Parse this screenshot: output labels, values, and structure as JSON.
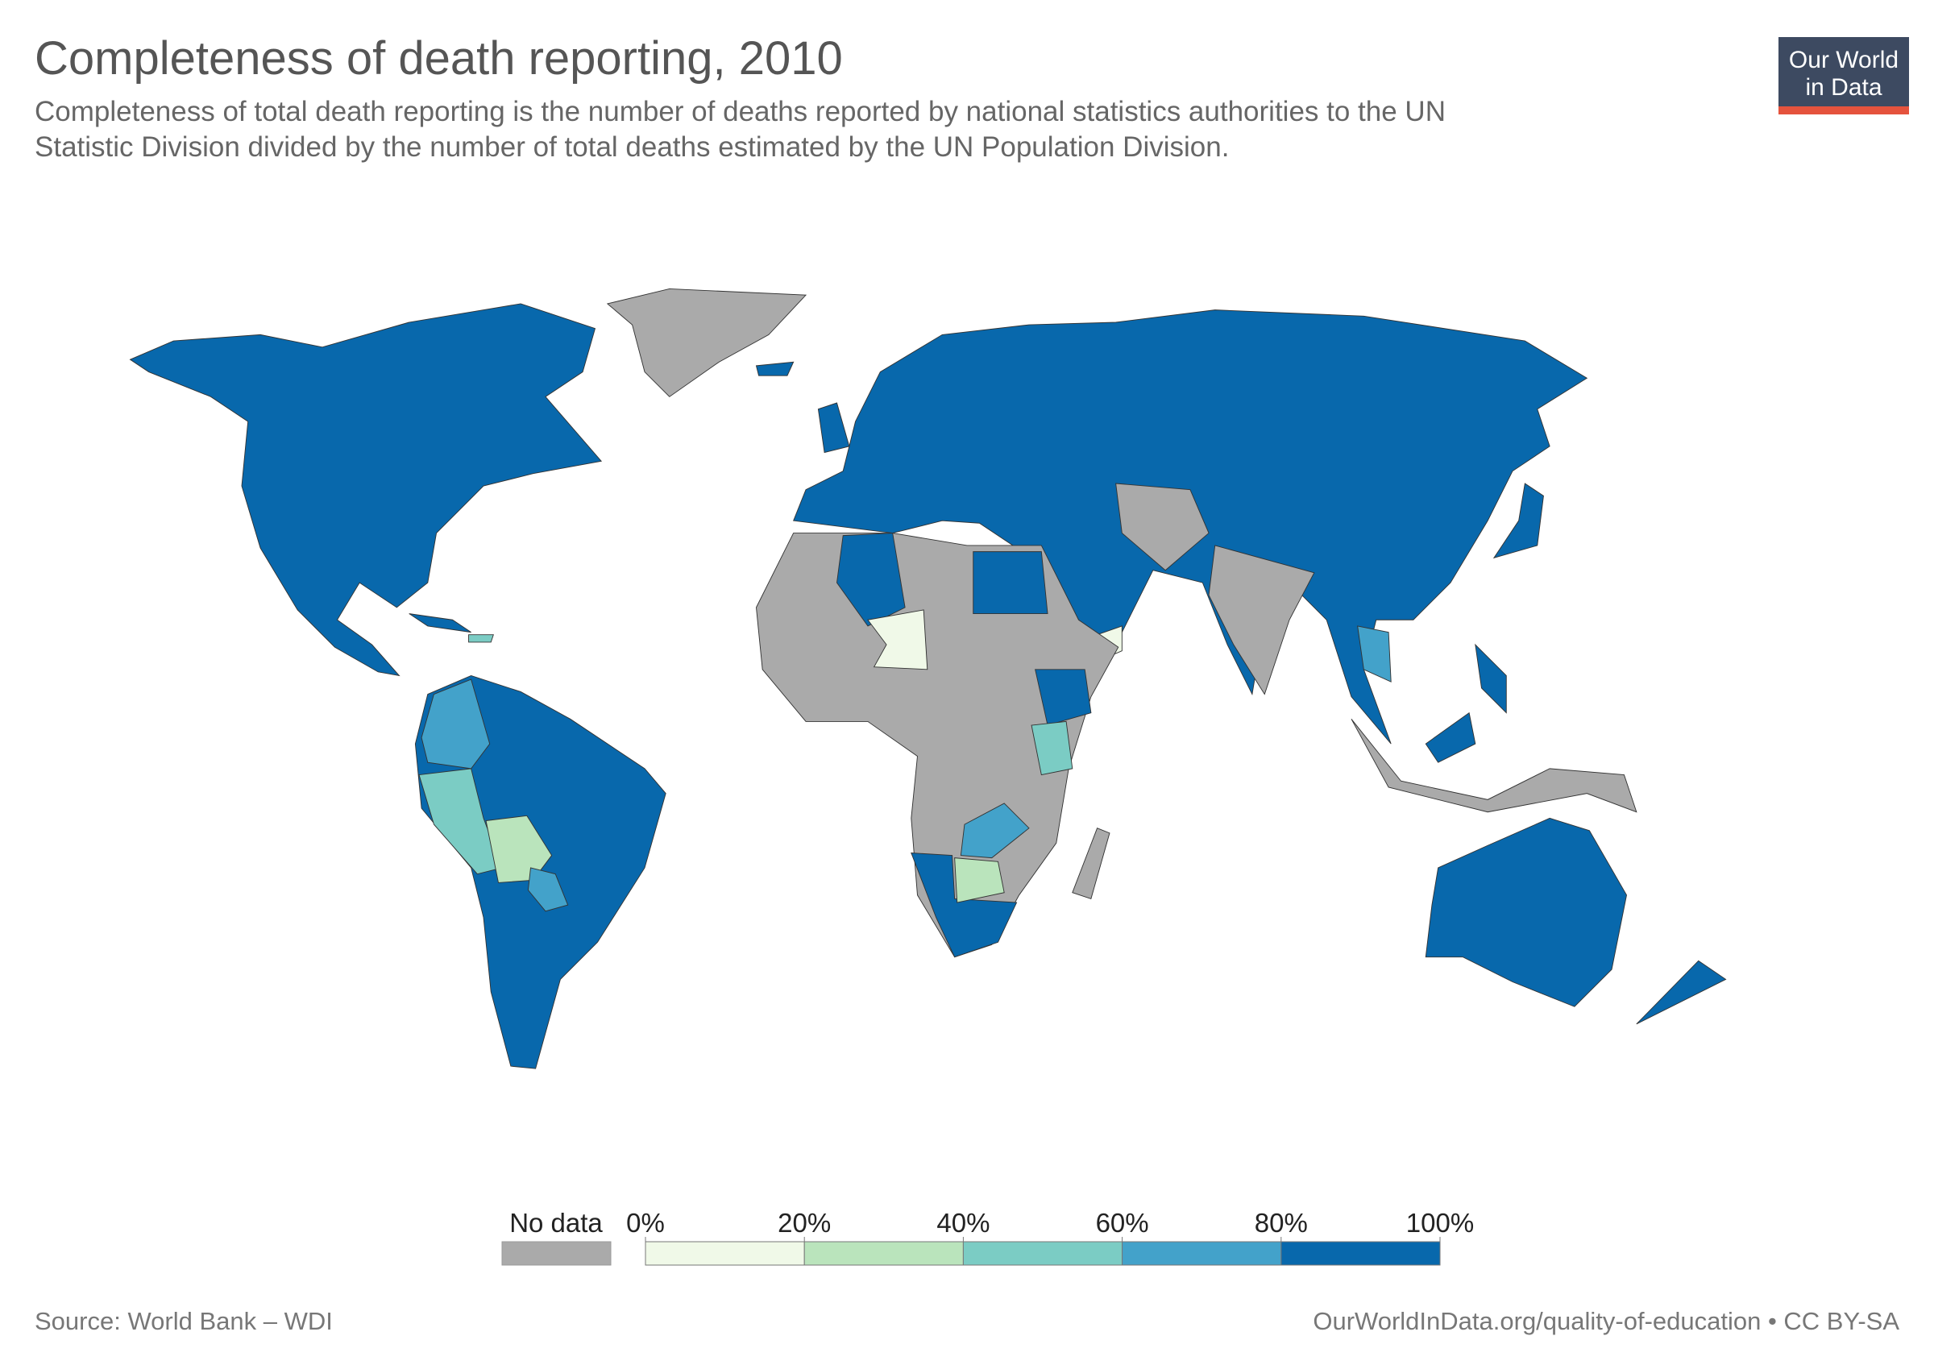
{
  "chart_data": {
    "type": "choropleth",
    "title": "Completeness of death reporting, 2010",
    "subtitle": [
      "Completeness of total death reporting is the number of deaths reported by national statistics authorities to the UN",
      "Statistic Division divided by the number of total deaths estimated by the UN Population Division."
    ],
    "logo": [
      "Our World",
      "in Data"
    ],
    "legend": {
      "no_data_label": "No data",
      "no_data_color": "#aaaaaa",
      "ticks": [
        {
          "value": 0,
          "label": "0%"
        },
        {
          "value": 20,
          "label": "20%"
        },
        {
          "value": 40,
          "label": "40%"
        },
        {
          "value": 60,
          "label": "60%"
        },
        {
          "value": 80,
          "label": "80%"
        },
        {
          "value": 100,
          "label": "100%"
        }
      ],
      "colors": [
        "#f0f9e8",
        "#bae4bc",
        "#7bccc4",
        "#43a2ca",
        "#0868ac"
      ]
    },
    "source": "Source: World Bank – WDI",
    "url": "OurWorldInData.org/quality-of-education • CC BY-SA"
  }
}
